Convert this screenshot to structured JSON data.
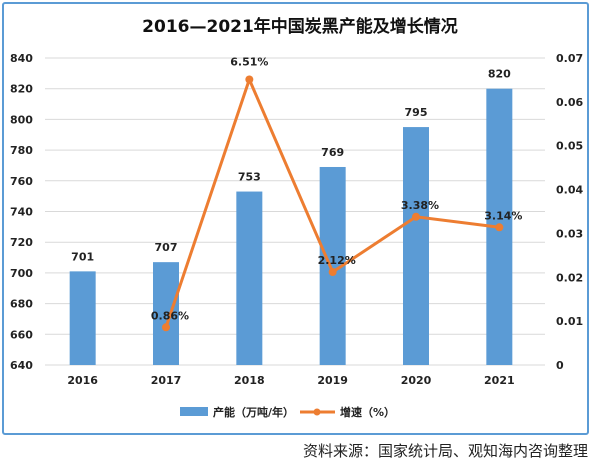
{
  "chart_data": {
    "type": "bar+line",
    "title": "2016—2021年中国炭黑产能及增长情况",
    "categories": [
      "2016",
      "2017",
      "2018",
      "2019",
      "2020",
      "2021"
    ],
    "series": [
      {
        "name": "产能（万吨/年）",
        "type": "bar",
        "axis": "left",
        "values": [
          701,
          707,
          753,
          769,
          795,
          820
        ],
        "labels": [
          "701",
          "707",
          "753",
          "769",
          "795",
          "820"
        ],
        "color": "#5b9bd5"
      },
      {
        "name": "增速（%）",
        "type": "line",
        "axis": "right",
        "values": [
          null,
          0.0086,
          0.0651,
          0.0212,
          0.0338,
          0.0314
        ],
        "labels": [
          "",
          "0.86%",
          "6.51%",
          "2.12%",
          "3.38%",
          "3.14%"
        ],
        "color": "#ed7d31"
      }
    ],
    "ylim_left": [
      640,
      840
    ],
    "yticks_left": [
      "640",
      "660",
      "680",
      "700",
      "720",
      "740",
      "760",
      "780",
      "800",
      "820",
      "840"
    ],
    "ylim_right": [
      0,
      0.07
    ],
    "yticks_right": [
      "0",
      "0.01",
      "0.02",
      "0.03",
      "0.04",
      "0.05",
      "0.06",
      "0.07"
    ],
    "grid": true,
    "legend": "bottom"
  },
  "source": "资料来源：国家统计局、观知海内咨询整理"
}
